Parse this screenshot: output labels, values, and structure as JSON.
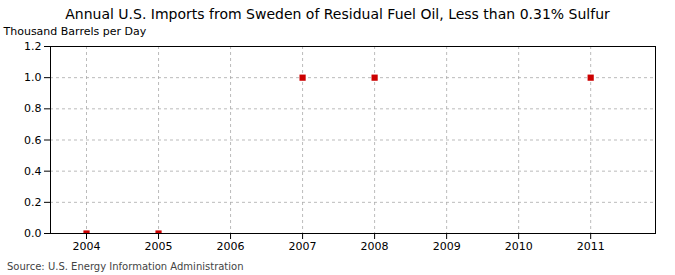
{
  "chart_data": {
    "type": "scatter",
    "title": "Annual U.S. Imports from Sweden of Residual Fuel Oil, Less than 0.31% Sulfur",
    "ylabel": "Thousand Barrels per Day",
    "source": "Source: U.S. Energy Information Administration",
    "x": [
      2004,
      2005,
      2007,
      2008,
      2011
    ],
    "values": [
      0.0,
      0.0,
      1.0,
      1.0,
      1.0
    ],
    "color": "#CC0000",
    "marker": "square",
    "xlim": [
      2003.5,
      2011.9
    ],
    "ylim": [
      0.0,
      1.2
    ],
    "xticks": [
      2004,
      2005,
      2006,
      2007,
      2008,
      2009,
      2010,
      2011
    ],
    "yticks": [
      {
        "value": 0.0,
        "label": "0.0"
      },
      0.2,
      0.4,
      0.6,
      0.8,
      {
        "value": 1.0,
        "label": "1.0"
      },
      1.2
    ],
    "grid": true
  }
}
